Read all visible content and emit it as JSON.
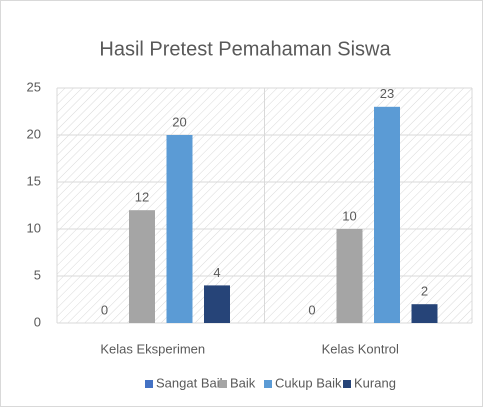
{
  "chart_data": {
    "type": "bar",
    "title": "Hasil Pretest Pemahaman Siswa",
    "categories": [
      "Kelas Eksperimen",
      "Kelas Kontrol"
    ],
    "series": [
      {
        "name": "Sangat Baik",
        "color": "#4472c4",
        "values": [
          0,
          0
        ]
      },
      {
        "name": "Baik",
        "color": "#a5a5a5",
        "values": [
          12,
          10
        ]
      },
      {
        "name": "Cukup Baik",
        "color": "#5b9bd5",
        "values": [
          20,
          23
        ]
      },
      {
        "name": "Kurang",
        "color": "#264478",
        "values": [
          4,
          2
        ]
      }
    ],
    "ylim": [
      0,
      25
    ],
    "yticks": [
      0,
      5,
      10,
      15,
      20,
      25
    ],
    "grid": true,
    "legend": "bottom",
    "data_labels": true
  }
}
